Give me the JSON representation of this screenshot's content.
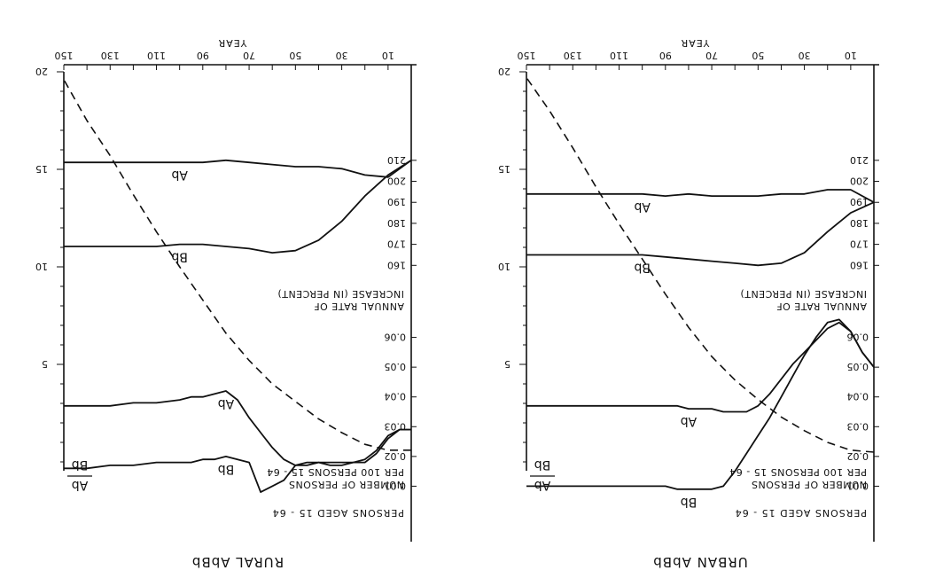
{
  "chart_data": [
    {
      "type": "line",
      "title": "RURAL AbBb",
      "x_axis": {
        "label": "YEAR",
        "ticks": [
          "10",
          "30",
          "50",
          "70",
          "90",
          "110",
          "130",
          "150"
        ],
        "range": [
          0,
          150
        ]
      },
      "y_left_axis": {
        "label": "PERSONS AGED 15 - 64",
        "ticks": [
          "5",
          "10",
          "15",
          "20"
        ]
      },
      "y_rate_axis": {
        "label": "ANNUAL RATE OF INCREASE (IN PERCENT)",
        "ticks": [
          "0.01",
          "0.02",
          "0.03",
          "0.04",
          "0.05",
          "0.06"
        ]
      },
      "y_number_axis": {
        "label": "NUMBER OF PERSONS PER 100 PERSONS 15 - 64",
        "ticks": [
          "160",
          "170",
          "180",
          "190",
          "200",
          "210"
        ]
      },
      "ratio_label": {
        "top": "Ab",
        "bottom": "Bb"
      },
      "series": [
        {
          "name": "Bb",
          "axis": "rate",
          "x": [
            0,
            5,
            10,
            15,
            20,
            25,
            30,
            35,
            40,
            45,
            50,
            55,
            60,
            65,
            70,
            75,
            80,
            85,
            90,
            95,
            100,
            110,
            120,
            130,
            140,
            150
          ],
          "values": [
            0.029,
            0.029,
            0.026,
            0.021,
            0.018,
            0.018,
            0.017,
            0.017,
            0.018,
            0.018,
            0.017,
            0.012,
            0.01,
            0.008,
            0.018,
            0.019,
            0.02,
            0.019,
            0.019,
            0.018,
            0.018,
            0.018,
            0.017,
            0.017,
            0.016,
            0.016
          ]
        },
        {
          "name": "Ab",
          "axis": "rate",
          "x": [
            0,
            5,
            10,
            15,
            20,
            25,
            30,
            35,
            40,
            45,
            50,
            55,
            60,
            65,
            70,
            75,
            80,
            85,
            90,
            95,
            100,
            110,
            120,
            130,
            140,
            150
          ],
          "values": [
            0.029,
            0.029,
            0.027,
            0.022,
            0.019,
            0.018,
            0.018,
            0.018,
            0.018,
            0.017,
            0.017,
            0.019,
            0.023,
            0.028,
            0.033,
            0.039,
            0.042,
            0.041,
            0.04,
            0.04,
            0.039,
            0.038,
            0.038,
            0.037,
            0.037,
            0.037
          ]
        },
        {
          "name": "Bb",
          "axis": "number",
          "x": [
            0,
            10,
            20,
            30,
            40,
            50,
            60,
            70,
            80,
            90,
            100,
            110,
            120,
            130,
            140,
            150
          ],
          "values": [
            210,
            203,
            193,
            181,
            172,
            167,
            166,
            168,
            169,
            170,
            170,
            169,
            169,
            169,
            169,
            169
          ]
        },
        {
          "name": "Ab",
          "axis": "number",
          "x": [
            0,
            10,
            20,
            30,
            40,
            50,
            60,
            70,
            80,
            90,
            100,
            110,
            120,
            130,
            140,
            150
          ],
          "values": [
            210,
            202,
            203,
            206,
            207,
            207,
            208,
            209,
            210,
            209,
            209,
            209,
            209,
            209,
            209,
            209
          ]
        },
        {
          "name": "persons aged 15 - 64",
          "axis": "persons",
          "style": "dashed",
          "x": [
            0,
            10,
            20,
            30,
            40,
            50,
            60,
            70,
            80,
            90,
            100,
            110,
            120,
            130,
            140,
            150
          ],
          "values": [
            0.6,
            0.6,
            0.9,
            1.5,
            2.2,
            3.1,
            4.0,
            5.2,
            6.6,
            8.3,
            10.0,
            11.8,
            13.7,
            15.7,
            17.5,
            19.6
          ]
        }
      ]
    },
    {
      "type": "line",
      "title": "URBAN AbBb",
      "x_axis": {
        "label": "YEAR",
        "ticks": [
          "10",
          "30",
          "50",
          "70",
          "90",
          "110",
          "130",
          "150"
        ],
        "range": [
          0,
          150
        ]
      },
      "y_left_axis": {
        "label": "PERSONS AGED 15 - 64",
        "ticks": [
          "5",
          "10",
          "15",
          "20"
        ]
      },
      "y_rate_axis": {
        "label": "ANNUAL RATE OF INCREASE (IN PERCENT)",
        "ticks": [
          "0.01",
          "0.02",
          "0.03",
          "0.04",
          "0.05",
          "0.06"
        ]
      },
      "y_number_axis": {
        "label": "NUMBER OF PERSONS PER 100 PERSONS 15 - 64",
        "ticks": [
          "160",
          "170",
          "180",
          "190",
          "200",
          "210"
        ]
      },
      "ratio_label": {
        "top": "Ab",
        "bottom": "Bb"
      },
      "series": [
        {
          "name": "Bb",
          "axis": "rate",
          "x": [
            0,
            5,
            10,
            15,
            20,
            25,
            30,
            35,
            40,
            45,
            50,
            55,
            60,
            65,
            70,
            75,
            80,
            85,
            90,
            95,
            100,
            110,
            120,
            130,
            140,
            150
          ],
          "values": [
            0.05,
            0.055,
            0.062,
            0.066,
            0.065,
            0.06,
            0.054,
            0.047,
            0.04,
            0.033,
            0.027,
            0.021,
            0.015,
            0.01,
            0.009,
            0.009,
            0.009,
            0.009,
            0.01,
            0.01,
            0.01,
            0.01,
            0.01,
            0.01,
            0.01,
            0.01
          ]
        },
        {
          "name": "Ab",
          "axis": "rate",
          "x": [
            0,
            5,
            10,
            15,
            20,
            25,
            30,
            35,
            40,
            45,
            50,
            55,
            60,
            65,
            70,
            75,
            80,
            85,
            90,
            95,
            100,
            110,
            120,
            130,
            140,
            150
          ],
          "values": [
            0.05,
            0.055,
            0.062,
            0.065,
            0.063,
            0.059,
            0.055,
            0.051,
            0.046,
            0.041,
            0.037,
            0.035,
            0.035,
            0.035,
            0.036,
            0.036,
            0.036,
            0.037,
            0.037,
            0.037,
            0.037,
            0.037,
            0.037,
            0.037,
            0.037,
            0.037
          ]
        },
        {
          "name": "Bb",
          "axis": "number",
          "x": [
            0,
            10,
            20,
            30,
            40,
            50,
            60,
            70,
            80,
            90,
            100,
            110,
            120,
            130,
            140,
            150
          ],
          "values": [
            190,
            185,
            176,
            166,
            161,
            160,
            161,
            162,
            163,
            164,
            165,
            165,
            165,
            165,
            165,
            165
          ]
        },
        {
          "name": "Ab",
          "axis": "number",
          "x": [
            0,
            10,
            20,
            30,
            40,
            50,
            60,
            70,
            80,
            90,
            100,
            110,
            120,
            130,
            140,
            150
          ],
          "values": [
            190,
            196,
            196,
            194,
            194,
            193,
            193,
            193,
            194,
            193,
            194,
            194,
            194,
            194,
            194,
            194
          ]
        },
        {
          "name": "persons aged 15 - 64",
          "axis": "persons",
          "style": "dashed",
          "x": [
            0,
            10,
            20,
            30,
            40,
            50,
            60,
            70,
            80,
            90,
            100,
            110,
            120,
            130,
            140,
            150
          ],
          "values": [
            0.5,
            0.6,
            1.0,
            1.6,
            2.3,
            3.2,
            4.2,
            5.4,
            6.9,
            8.6,
            10.4,
            12.2,
            14.1,
            16.1,
            18.0,
            19.7
          ]
        }
      ]
    }
  ]
}
